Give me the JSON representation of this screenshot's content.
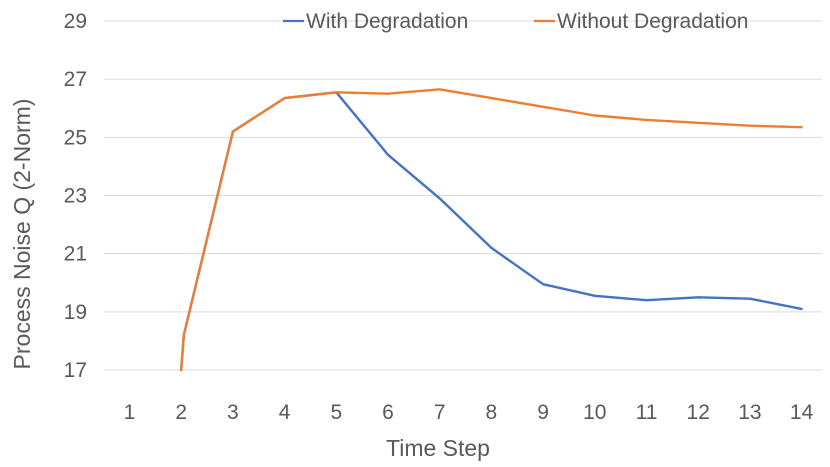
{
  "chart_data": {
    "type": "line",
    "title": "",
    "xlabel": "Time Step",
    "ylabel": "Process Noise Q (2-Norm)",
    "x": [
      1,
      2,
      3,
      4,
      5,
      6,
      7,
      8,
      9,
      10,
      11,
      12,
      13,
      14
    ],
    "x_tick_labels": [
      "1",
      "2",
      "3",
      "4",
      "5",
      "6",
      "7",
      "8",
      "9",
      "10",
      "11",
      "12",
      "13",
      "14"
    ],
    "y_tick_labels": [
      "17",
      "19",
      "21",
      "23",
      "25",
      "27",
      "29"
    ],
    "ylim": [
      17,
      29
    ],
    "grid": "horizontal",
    "legend_position": "top-right",
    "series": [
      {
        "name": "With Degradation",
        "color": "#4472C4",
        "points": [
          [
            2,
            17.0
          ],
          [
            2.05,
            18.2
          ],
          [
            3,
            25.2
          ],
          [
            4,
            26.35
          ],
          [
            5,
            26.55
          ],
          [
            6,
            24.4
          ],
          [
            7,
            22.9
          ],
          [
            8,
            21.2
          ],
          [
            9,
            19.95
          ],
          [
            10,
            19.55
          ],
          [
            11,
            19.4
          ],
          [
            12,
            19.5
          ],
          [
            13,
            19.45
          ],
          [
            14,
            19.1
          ]
        ]
      },
      {
        "name": "Without Degradation",
        "color": "#ED7D31",
        "points": [
          [
            2,
            17.0
          ],
          [
            2.05,
            18.2
          ],
          [
            3,
            25.2
          ],
          [
            4,
            26.35
          ],
          [
            5,
            26.55
          ],
          [
            6,
            26.5
          ],
          [
            7,
            26.65
          ],
          [
            8,
            26.35
          ],
          [
            9,
            26.05
          ],
          [
            10,
            25.75
          ],
          [
            11,
            25.6
          ],
          [
            12,
            25.5
          ],
          [
            13,
            25.4
          ],
          [
            14,
            25.35
          ]
        ]
      }
    ]
  }
}
